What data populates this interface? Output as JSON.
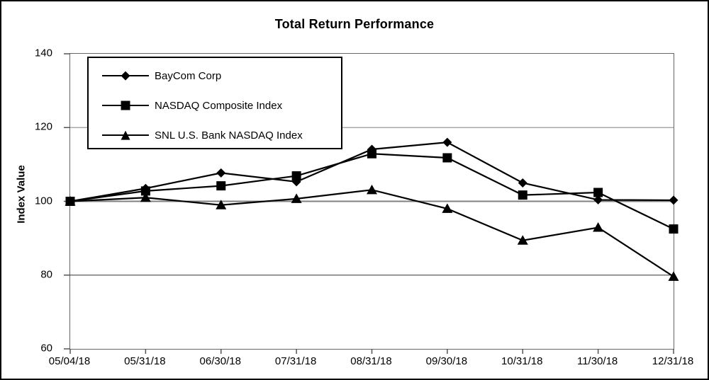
{
  "chart_data": {
    "type": "line",
    "title": "Total Return Performance",
    "ylabel": "Index Value",
    "xlabel": "",
    "categories": [
      "05/04/18",
      "05/31/18",
      "06/30/18",
      "07/31/18",
      "08/31/18",
      "09/30/18",
      "10/31/18",
      "11/30/18",
      "12/31/18"
    ],
    "series": [
      {
        "name": "BayCom Corp",
        "marker": "diamond",
        "glyph": "◆",
        "values": [
          100,
          103.5,
          107.7,
          105.3,
          114.1,
          116.0,
          105.0,
          100.4,
          100.3
        ]
      },
      {
        "name": "NASDAQ Composite Index",
        "marker": "square",
        "glyph": "■",
        "values": [
          100,
          102.8,
          104.2,
          106.9,
          112.9,
          111.8,
          101.7,
          102.4,
          92.5
        ]
      },
      {
        "name": "SNL U.S. Bank NASDAQ Index",
        "marker": "triangle",
        "glyph": "▲",
        "values": [
          100,
          101.0,
          99.0,
          100.7,
          103.1,
          98.0,
          89.4,
          92.9,
          79.6
        ]
      }
    ],
    "ylim": [
      60,
      140
    ],
    "yticks": [
      "60",
      "80",
      "100",
      "120",
      "140"
    ],
    "gridlines": [
      80,
      100,
      120
    ],
    "grid_on": true,
    "legend_position": "top-left",
    "colors": {
      "series_line": "#000000",
      "marker_fill": "#000000",
      "gridline_major": "#808080",
      "gridline_80": "#5a5a5a",
      "gridline_120": "#999999",
      "axis_box": "#666666",
      "tick": "#555555",
      "background": "#ffffff",
      "border": "#000000"
    }
  }
}
